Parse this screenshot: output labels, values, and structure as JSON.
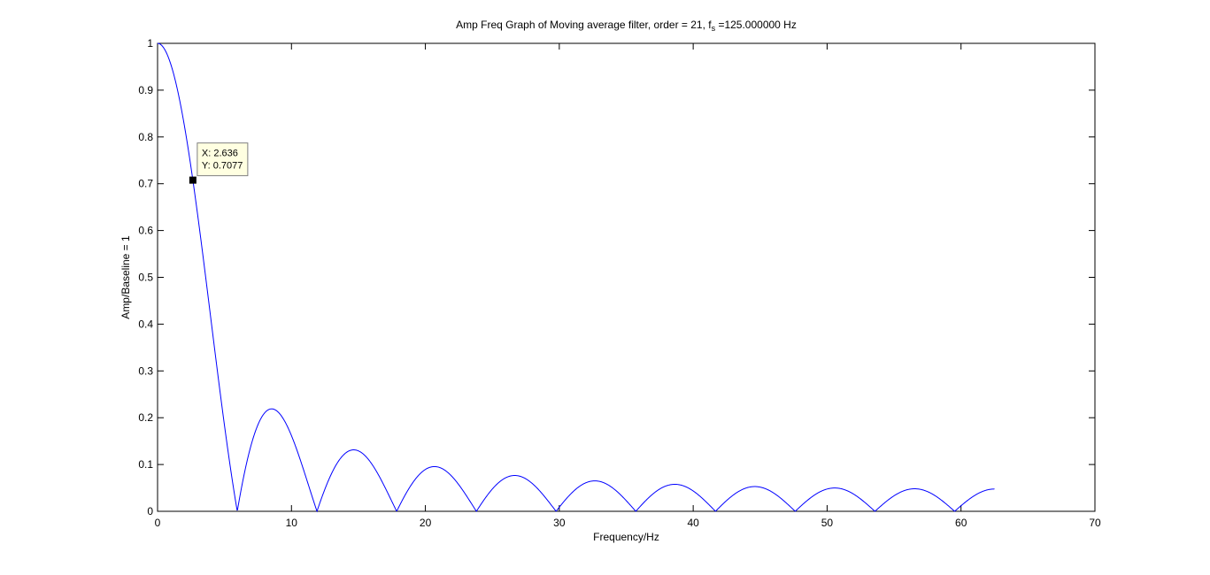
{
  "chart_data": {
    "type": "line",
    "title": {
      "main": "Amp Freq Graph of Moving average filter, order = 21, f",
      "sub": "s",
      "suffix": " =125.000000 Hz"
    },
    "xlabel": "Frequency/Hz",
    "ylabel": "Amp/Baseline = 1",
    "xlim": [
      0,
      70
    ],
    "ylim": [
      0,
      1
    ],
    "xticks": [
      0,
      10,
      20,
      30,
      40,
      50,
      60,
      70
    ],
    "yticks": [
      0,
      0.1,
      0.2,
      0.3,
      0.4,
      0.5,
      0.6,
      0.7,
      0.8,
      0.9,
      1
    ],
    "grid": false,
    "series": [
      {
        "color": "#0000ff",
        "model": "moving_average_magnitude",
        "filter_order": 21,
        "sampling_rate_hz": 125,
        "x_start": 0,
        "x_end": 62.5,
        "samples": [
          [
            0,
            1
          ],
          [
            2.636,
            0.7077
          ],
          [
            5.95,
            0
          ],
          [
            8.5,
            0.218
          ],
          [
            11.9,
            0
          ],
          [
            14.6,
            0.131
          ],
          [
            17.86,
            0
          ],
          [
            20.6,
            0.095
          ],
          [
            23.8,
            0
          ],
          [
            26.7,
            0.076
          ],
          [
            29.76,
            0
          ],
          [
            32.7,
            0.066
          ],
          [
            35.7,
            0
          ],
          [
            38.7,
            0.057
          ],
          [
            41.67,
            0
          ],
          [
            44.6,
            0.053
          ],
          [
            47.6,
            0
          ],
          [
            50.6,
            0.05
          ],
          [
            53.57,
            0
          ],
          [
            56.6,
            0.048
          ],
          [
            59.5,
            0
          ],
          [
            62.5,
            0.048
          ]
        ]
      }
    ],
    "datatip": {
      "x": 2.636,
      "y": 0.7077,
      "x_text": "X: 2.636",
      "y_text": "Y: 0.7077",
      "background": "#ffffe1"
    }
  }
}
